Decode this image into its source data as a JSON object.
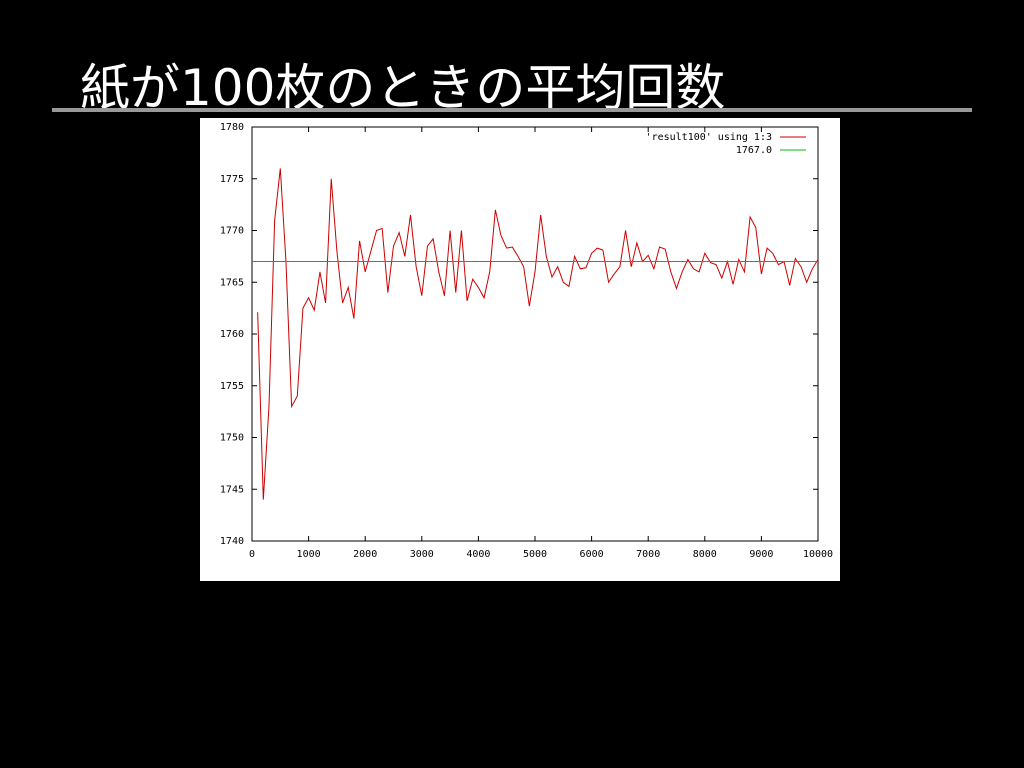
{
  "chart_data": {
    "type": "line",
    "title": "紙が100枚のときの平均回数",
    "xlim": [
      0,
      10000
    ],
    "ylim": [
      1740,
      1780
    ],
    "xticks": [
      0,
      1000,
      2000,
      3000,
      4000,
      5000,
      6000,
      7000,
      8000,
      9000,
      10000
    ],
    "yticks": [
      1740,
      1745,
      1750,
      1755,
      1760,
      1765,
      1770,
      1775,
      1780
    ],
    "legend": "top-right",
    "series": [
      {
        "name": "'result100' using 1:3",
        "color": "#cc0000",
        "x": [
          100,
          200,
          300,
          400,
          500,
          600,
          700,
          800,
          900,
          1000,
          1100,
          1200,
          1300,
          1400,
          1500,
          1600,
          1700,
          1800,
          1900,
          2000,
          2100,
          2200,
          2300,
          2400,
          2500,
          2600,
          2700,
          2800,
          2900,
          3000,
          3100,
          3200,
          3300,
          3400,
          3500,
          3600,
          3700,
          3800,
          3900,
          4000,
          4100,
          4200,
          4300,
          4400,
          4500,
          4600,
          4700,
          4800,
          4900,
          5000,
          5100,
          5200,
          5300,
          5400,
          5500,
          5600,
          5700,
          5800,
          5900,
          6000,
          6100,
          6200,
          6300,
          6400,
          6500,
          6600,
          6700,
          6800,
          6900,
          7000,
          7100,
          7200,
          7300,
          7400,
          7500,
          7600,
          7700,
          7800,
          7900,
          8000,
          8100,
          8200,
          8300,
          8400,
          8500,
          8600,
          8700,
          8800,
          8900,
          9000,
          9100,
          9200,
          9300,
          9400,
          9500,
          9600,
          9700,
          9800,
          9900,
          10000
        ],
        "values": [
          1762.1,
          1744,
          1753,
          1771,
          1776,
          1767,
          1753,
          1754,
          1762.5,
          1763.5,
          1762.3,
          1766,
          1763,
          1775,
          1768,
          1763,
          1764.5,
          1761.5,
          1769,
          1766,
          1768,
          1770,
          1770.2,
          1764,
          1768.5,
          1769.8,
          1767.5,
          1771.5,
          1766.5,
          1763.7,
          1768.5,
          1769.2,
          1766,
          1763.7,
          1770,
          1764,
          1770,
          1763.2,
          1765.3,
          1764.5,
          1763.5,
          1766,
          1772,
          1769.5,
          1768.3,
          1768.4,
          1767.5,
          1766.5,
          1762.7,
          1766,
          1771.5,
          1767.5,
          1765.5,
          1766.5,
          1765,
          1764.6,
          1767.5,
          1766.3,
          1766.4,
          1767.8,
          1768.3,
          1768.1,
          1765,
          1765.8,
          1766.5,
          1770,
          1766.5,
          1768.8,
          1767,
          1767.6,
          1766.3,
          1768.4,
          1768.2,
          1766,
          1764.4,
          1766,
          1767.2,
          1766.3,
          1766,
          1767.8,
          1766.9,
          1766.7,
          1765.4,
          1767,
          1764.8,
          1767.2,
          1766,
          1771.3,
          1770.3,
          1765.8,
          1768.3,
          1767.8,
          1766.7,
          1767,
          1764.7,
          1767.3,
          1766.5,
          1765,
          1766.3,
          1767.2
        ]
      },
      {
        "name": "1767.0",
        "color": "#00bb00",
        "x": [
          0,
          10000
        ],
        "values": [
          1767,
          1767
        ]
      }
    ]
  }
}
